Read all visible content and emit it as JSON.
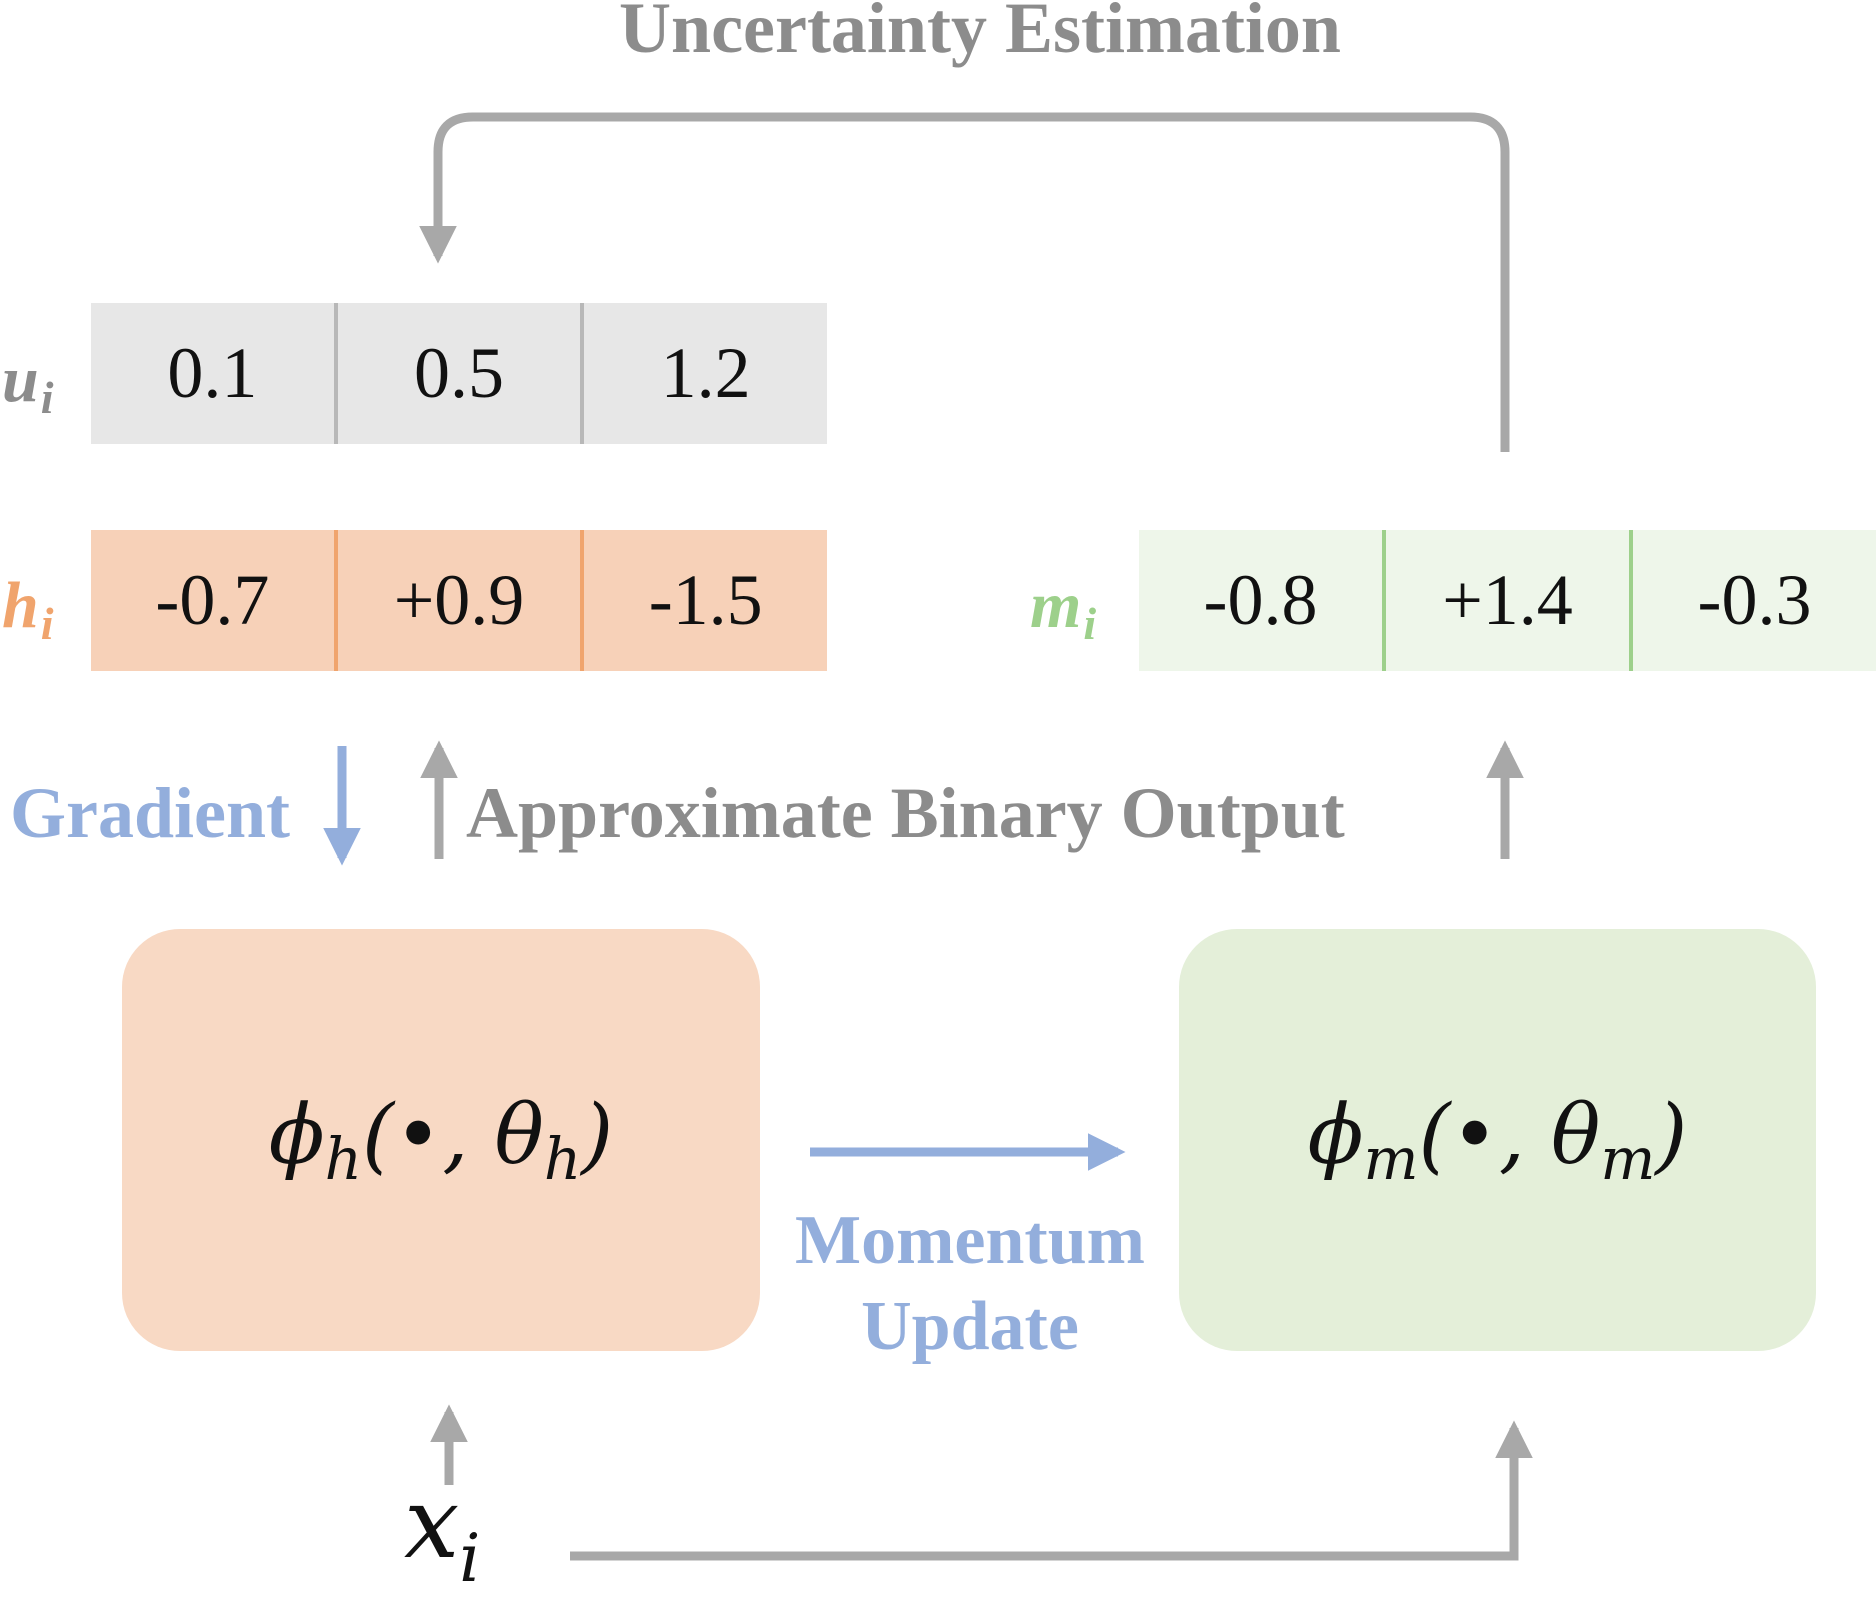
{
  "title": "Uncertainty Estimation",
  "vectors": {
    "u": {
      "name": "u",
      "sub": "i",
      "color": "#8c8c8c",
      "values": [
        "0.1",
        "0.5",
        "1.2"
      ]
    },
    "h": {
      "name": "h",
      "sub": "i",
      "color": "#f0a46d",
      "values": [
        "-0.7",
        "+0.9",
        "-1.5"
      ]
    },
    "m": {
      "name": "m",
      "sub": "i",
      "color": "#9dd08b",
      "values": [
        "-0.8",
        "+1.4",
        "-0.3"
      ]
    }
  },
  "labels": {
    "gradient": "Gradient",
    "approx_binary_output": "Approximate Binary Output",
    "momentum": "Momentum",
    "update": "Update"
  },
  "networks": {
    "h": {
      "func": "ϕ",
      "func_sub": "h",
      "arg": "(•, θ",
      "arg_sub": "h",
      "close": ")"
    },
    "m": {
      "func": "ϕ",
      "func_sub": "m",
      "arg": "(•, θ",
      "arg_sub": "m",
      "close": ")"
    }
  },
  "input": {
    "name": "x",
    "sub": "i"
  },
  "colors": {
    "gray_arrow": "#a8a8a8",
    "blue_arrow": "#93aedc",
    "hash_box": "#f8d9c4",
    "momentum_box": "#e4efd9"
  }
}
